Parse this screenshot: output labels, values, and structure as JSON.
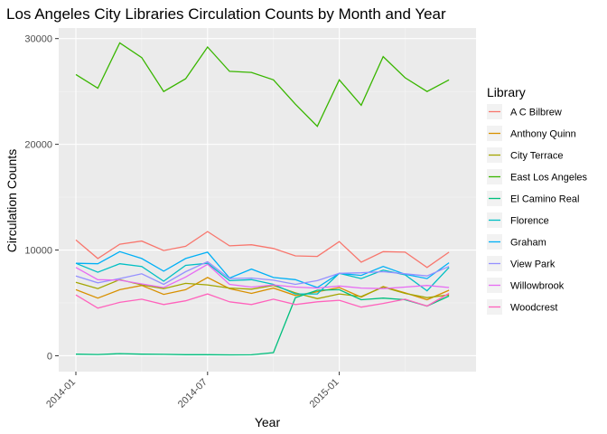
{
  "chart_data": {
    "type": "line",
    "title": "Los Angeles City Libraries Circulation Counts by Month and Year",
    "xlabel": "Year",
    "ylabel": "Circulation Counts",
    "legend_title": "Library",
    "legend_position": "right",
    "grid": true,
    "x": [
      "2014-01",
      "2014-02",
      "2014-03",
      "2014-04",
      "2014-05",
      "2014-06",
      "2014-07",
      "2014-08",
      "2014-09",
      "2014-10",
      "2014-11",
      "2014-12",
      "2015-01",
      "2015-02",
      "2015-03",
      "2015-04",
      "2015-05",
      "2015-06"
    ],
    "xticks": [
      "2014-01",
      "2014-07",
      "2015-01"
    ],
    "yticks": [
      0,
      10000,
      20000,
      30000
    ],
    "ylim": [
      -1500,
      31000
    ],
    "series": [
      {
        "name": "A C Bilbrew",
        "color": "#F8766D",
        "values": [
          10950,
          9200,
          10550,
          10850,
          9950,
          10350,
          11750,
          10400,
          10500,
          10150,
          9450,
          9400,
          10800,
          8850,
          9850,
          9800,
          8350,
          9800
        ]
      },
      {
        "name": "Anthony Quinn",
        "color": "#D89000",
        "values": [
          6250,
          5450,
          6250,
          6650,
          5800,
          6250,
          7400,
          6350,
          5900,
          6400,
          5700,
          6050,
          6450,
          5550,
          6550,
          5950,
          5300,
          6200
        ]
      },
      {
        "name": "City Terrace",
        "color": "#A3A500",
        "values": [
          6950,
          6350,
          7200,
          6700,
          6350,
          6850,
          6700,
          6400,
          6300,
          6650,
          5950,
          5400,
          5850,
          5600,
          6500,
          5900,
          5500,
          5750
        ]
      },
      {
        "name": "East Los Angeles",
        "color": "#39B600",
        "values": [
          26600,
          25300,
          29600,
          28200,
          25000,
          26200,
          29200,
          26900,
          26800,
          26100,
          23800,
          21700,
          26100,
          23700,
          28300,
          26300,
          25000,
          26100
        ]
      },
      {
        "name": "El Camino Real",
        "color": "#00BF7D",
        "values": [
          150,
          120,
          200,
          150,
          130,
          100,
          100,
          80,
          90,
          300,
          5500,
          6200,
          6250,
          5300,
          5450,
          5300,
          4700,
          5650
        ]
      },
      {
        "name": "Florence",
        "color": "#00BFC4",
        "values": [
          8750,
          7900,
          8700,
          8450,
          7050,
          8550,
          8750,
          7100,
          7200,
          6750,
          5850,
          5850,
          7800,
          7300,
          8100,
          7650,
          6150,
          8350
        ]
      },
      {
        "name": "Graham",
        "color": "#00B0F6",
        "values": [
          8750,
          8700,
          9850,
          9200,
          8000,
          9200,
          9800,
          7350,
          8200,
          7400,
          7200,
          6450,
          7800,
          7600,
          8450,
          7700,
          7300,
          8800
        ]
      },
      {
        "name": "View Park",
        "color": "#9590FF",
        "values": [
          7550,
          6900,
          7300,
          7750,
          6750,
          7950,
          8900,
          7300,
          7350,
          7150,
          6750,
          7100,
          7800,
          7850,
          7950,
          7750,
          7550,
          8450
        ]
      },
      {
        "name": "Willowbrook",
        "color": "#E76BF3",
        "values": [
          8350,
          7200,
          7150,
          6800,
          6450,
          7450,
          8650,
          6750,
          6500,
          6700,
          6500,
          6400,
          6600,
          6400,
          6350,
          6500,
          6650,
          6450
        ]
      },
      {
        "name": "Woodcrest",
        "color": "#FF62BC",
        "values": [
          5750,
          4500,
          5050,
          5350,
          4850,
          5200,
          5850,
          5100,
          4850,
          5350,
          4850,
          5100,
          5250,
          4600,
          4950,
          5350,
          4700,
          5900
        ]
      }
    ]
  }
}
